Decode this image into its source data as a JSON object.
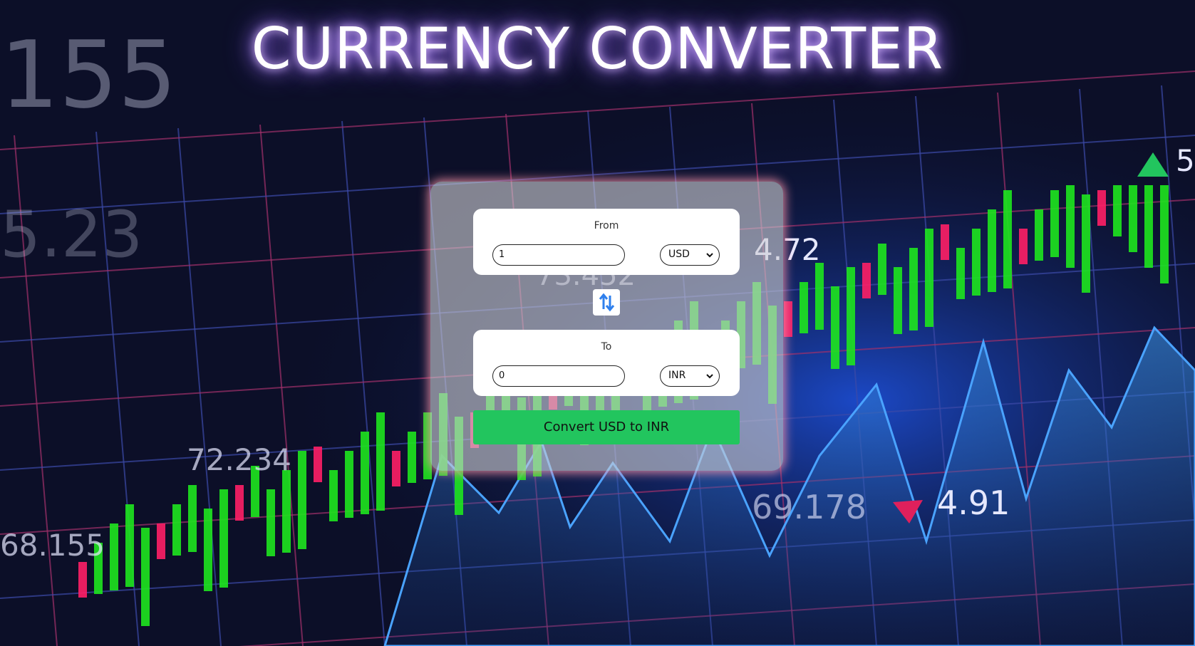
{
  "header": {
    "title": "CURRENCY CONVERTER"
  },
  "background": {
    "labels": [
      "155",
      "5.23",
      "4.72",
      "73.452",
      "72.234",
      "68.155",
      "69.178",
      "4.91",
      "5"
    ]
  },
  "converter": {
    "from": {
      "label": "From",
      "amount": "1",
      "currency": "USD"
    },
    "to": {
      "label": "To",
      "amount": "0",
      "currency": "INR"
    },
    "button": "Convert USD to INR"
  }
}
